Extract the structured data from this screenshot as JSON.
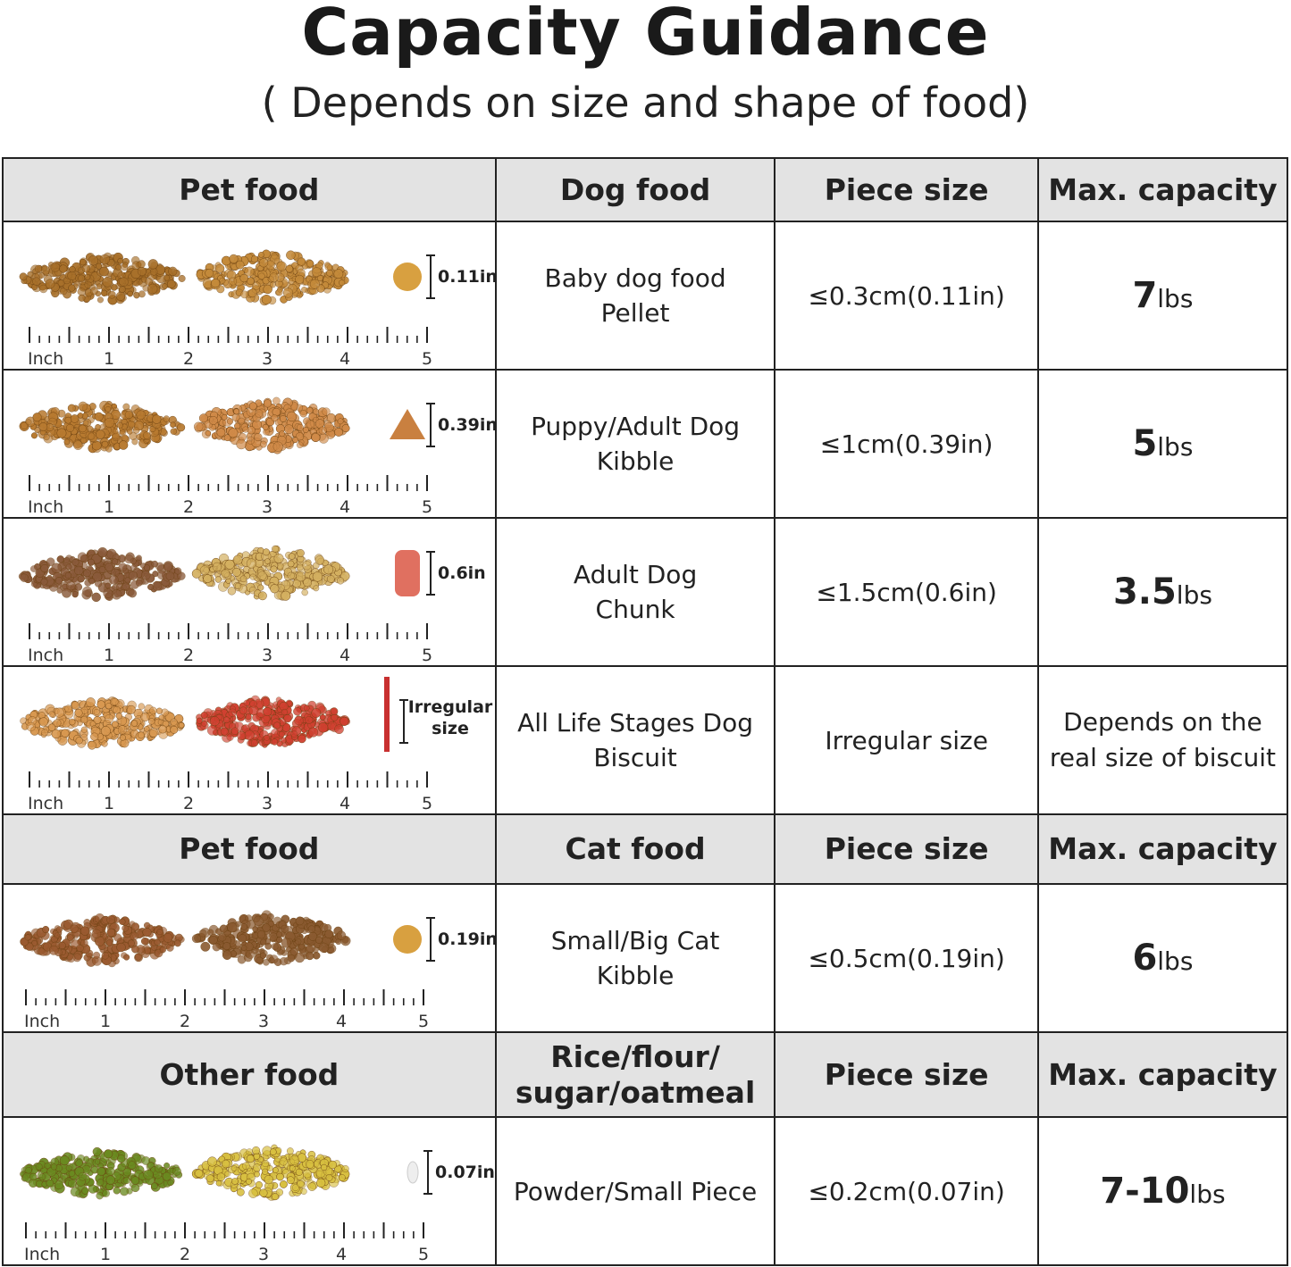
{
  "title": "Capacity Guidance",
  "subtitle": "( Depends on size and shape of food)",
  "ruler": {
    "unit": "Inch",
    "labels": [
      "1",
      "2",
      "3",
      "4",
      "5"
    ]
  },
  "sections": [
    {
      "header": [
        "Pet food",
        "Dog food",
        "Piece size",
        "Max. capacity"
      ],
      "rows": [
        {
          "piece_label": "0.11in",
          "colors": [
            "#a8702a",
            "#c48a3a"
          ],
          "piece": "round",
          "name": "Baby dog food\nPellet",
          "size": "≤0.3cm(0.11in)",
          "cap_num": "7",
          "cap_unit": "lbs"
        },
        {
          "piece_label": "0.39in",
          "colors": [
            "#b87a30",
            "#d08a48"
          ],
          "piece": "triangle",
          "name": "Puppy/Adult Dog\nKibble",
          "size": "≤1cm(0.39in)",
          "cap_num": "5",
          "cap_unit": "lbs"
        },
        {
          "piece_label": "0.6in",
          "colors": [
            "#8a5a3a",
            "#d4b060"
          ],
          "piece": "bone",
          "name": "Adult Dog\nChunk",
          "size": "≤1.5cm(0.6in)",
          "cap_num": "3.5",
          "cap_unit": "lbs"
        },
        {
          "piece_label": "Irregular\nsize",
          "colors": [
            "#d89850",
            "#d04030"
          ],
          "piece": "stick",
          "name": "All Life Stages Dog\nBiscuit",
          "size": "Irregular size",
          "cap_text": "Depends on the\nreal size of biscuit"
        }
      ]
    },
    {
      "header": [
        "Pet food",
        "Cat food",
        "Piece size",
        "Max. capacity"
      ],
      "rows": [
        {
          "piece_label": "0.19in",
          "colors": [
            "#9a5a30",
            "#8a5a30"
          ],
          "piece": "round",
          "name": "Small/Big Cat\nKibble",
          "size": "≤0.5cm(0.19in)",
          "cap_num": "6",
          "cap_unit": "lbs"
        }
      ]
    },
    {
      "header": [
        "Other food",
        "Rice/flour/\nsugar/oatmeal",
        "Piece size",
        "Max. capacity"
      ],
      "rows": [
        {
          "piece_label": "0.07in",
          "colors": [
            "#6a8a20",
            "#d8c040"
          ],
          "piece": "grain",
          "name": "Powder/Small Piece",
          "size": "≤0.2cm(0.07in)",
          "cap_num": "7-10",
          "cap_unit": "lbs"
        }
      ]
    }
  ]
}
